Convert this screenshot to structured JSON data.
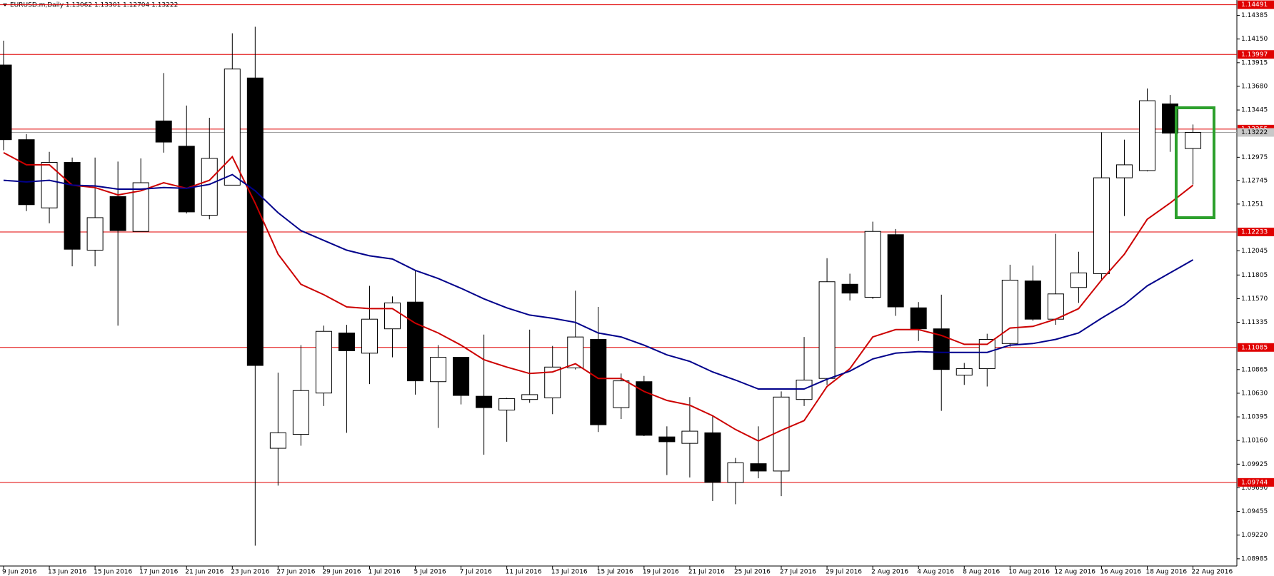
{
  "chart_data": {
    "type": "candlestick",
    "title": "EURUSD.m,Daily  1.13062 1.13301 1.12704 1.13222",
    "categories": [
      "9 Jun 2016",
      null,
      "13 Jun 2016",
      null,
      "15 Jun 2016",
      null,
      "17 Jun 2016",
      null,
      "21 Jun 2016",
      null,
      "23 Jun 2016",
      null,
      "27 Jun 2016",
      null,
      "29 Jun 2016",
      null,
      "1 Jul 2016",
      null,
      "5 Jul 2016",
      null,
      "7 Jul 2016",
      null,
      "11 Jul 2016",
      null,
      "13 Jul 2016",
      null,
      "15 Jul 2016",
      null,
      "19 Jul 2016",
      null,
      "21 Jul 2016",
      null,
      "25 Jul 2016",
      null,
      "27 Jul 2016",
      null,
      "29 Jul 2016",
      null,
      "2 Aug 2016",
      null,
      "4 Aug 2016",
      null,
      "8 Aug 2016",
      null,
      "10 Aug 2016",
      null,
      "12 Aug 2016",
      null,
      "16 Aug 2016",
      null,
      "18 Aug 2016",
      null,
      "22 Aug 2016"
    ],
    "open": [
      1.13892,
      1.1315,
      1.12472,
      1.12924,
      1.12052,
      1.12585,
      1.12238,
      1.13336,
      1.13085,
      1.12399,
      1.12698,
      1.13763,
      1.10083,
      1.10221,
      1.10632,
      1.11229,
      1.11028,
      1.1127,
      1.11536,
      1.10745,
      1.10987,
      1.106,
      1.10463,
      1.10568,
      1.10584,
      1.10882,
      1.11165,
      1.10487,
      1.10745,
      1.10196,
      1.10132,
      1.10237,
      1.09744,
      1.0993,
      1.09857,
      1.10568,
      1.10777,
      1.11713,
      1.11584,
      1.12206,
      1.11479,
      1.1127,
      1.1081,
      1.10874,
      1.11124,
      1.11746,
      1.11366,
      1.11681,
      1.11818,
      1.12771,
      1.12843,
      1.13505,
      1.13062
    ],
    "high": [
      1.14134,
      1.13206,
      1.13029,
      1.12972,
      1.12972,
      1.12932,
      1.12964,
      1.13812,
      1.13489,
      1.13368,
      1.14207,
      1.14272,
      1.10834,
      1.11108,
      1.11302,
      1.1131,
      1.11697,
      1.11592,
      1.11851,
      1.11108,
      1.10987,
      1.11213,
      1.10584,
      1.11262,
      1.111,
      1.11649,
      1.11488,
      1.10826,
      1.10802,
      1.10301,
      1.10592,
      1.10406,
      1.09987,
      1.10301,
      1.10648,
      1.11189,
      1.11972,
      1.11818,
      1.12335,
      1.12262,
      1.11536,
      1.11609,
      1.10931,
      1.11221,
      1.11907,
      1.11899,
      1.12214,
      1.12036,
      1.13223,
      1.1315,
      1.13658,
      1.13594,
      1.13301
    ],
    "low": [
      1.13045,
      1.1244,
      1.12319,
      1.11891,
      1.11891,
      1.11302,
      1.12238,
      1.13021,
      1.12416,
      1.12359,
      1.12698,
      1.09115,
      1.09712,
      1.10108,
      1.10503,
      1.10237,
      1.10721,
      1.10987,
      1.10616,
      1.10285,
      1.10519,
      1.10019,
      1.10148,
      1.10535,
      1.10422,
      1.10866,
      1.10245,
      1.10374,
      1.10204,
      1.09817,
      1.09793,
      1.09559,
      1.09527,
      1.09785,
      1.09607,
      1.10503,
      1.10713,
      1.11552,
      1.11568,
      1.11399,
      1.11149,
      1.10455,
      1.10713,
      1.10697,
      1.11092,
      1.1135,
      1.1131,
      1.11528,
      1.11754,
      1.12391,
      1.12835,
      1.13029,
      1.12704
    ],
    "close": [
      1.1315,
      1.12504,
      1.12924,
      1.12061,
      1.12375,
      1.12246,
      1.12722,
      1.13126,
      1.12432,
      1.12964,
      1.13852,
      1.10906,
      1.10237,
      1.10656,
      1.11245,
      1.11052,
      1.11366,
      1.11528,
      1.10753,
      1.10987,
      1.10608,
      1.10487,
      1.10576,
      1.10616,
      1.1089,
      1.11189,
      1.10317,
      1.10753,
      1.10212,
      1.10148,
      1.10253,
      1.09744,
      1.09938,
      1.09857,
      1.10592,
      1.10761,
      1.11738,
      1.11625,
      1.12238,
      1.11488,
      1.1127,
      1.10866,
      1.10874,
      1.11165,
      1.11754,
      1.11366,
      1.11617,
      1.11826,
      1.12771,
      1.129,
      1.13537,
      1.13215,
      1.13222
    ],
    "up_color": "#ffffff",
    "down_color": "#000000",
    "lines": [
      {
        "color": "#cc0000",
        "values": [
          1.13021,
          1.129,
          1.129,
          1.12698,
          1.12674,
          1.12601,
          1.12642,
          1.12722,
          1.12666,
          1.12746,
          1.1298,
          1.1252,
          1.12012,
          1.11713,
          1.11609,
          1.11488,
          1.11471,
          1.11471,
          1.11326,
          1.11229,
          1.11108,
          1.10963,
          1.1089,
          1.10826,
          1.10842,
          1.10923,
          1.10777,
          1.10777,
          1.10648,
          1.10559,
          1.10511,
          1.10406,
          1.10269,
          1.10156,
          1.10261,
          1.10358,
          1.10697,
          1.10874,
          1.11189,
          1.11262,
          1.11262,
          1.11205,
          1.11116,
          1.11116,
          1.11278,
          1.11294,
          1.11366,
          1.11471,
          1.11754,
          1.12012,
          1.12359,
          1.1252,
          1.12698
        ]
      },
      {
        "color": "#00008b",
        "values": [
          1.12746,
          1.1273,
          1.12746,
          1.12698,
          1.1269,
          1.12658,
          1.12658,
          1.12674,
          1.12666,
          1.12706,
          1.12803,
          1.12642,
          1.12424,
          1.12246,
          1.12149,
          1.12052,
          1.11996,
          1.11964,
          1.11851,
          1.1177,
          1.11673,
          1.11568,
          1.11479,
          1.11407,
          1.11375,
          1.11334,
          1.11229,
          1.11189,
          1.11108,
          1.11011,
          1.10947,
          1.10842,
          1.10761,
          1.10672,
          1.10672,
          1.10672,
          1.10769,
          1.1085,
          1.10971,
          1.11028,
          1.11044,
          1.11036,
          1.11036,
          1.11036,
          1.11108,
          1.11124,
          1.11165,
          1.11229,
          1.11375,
          1.11512,
          1.11697,
          1.11826,
          1.11956
        ]
      }
    ],
    "levels": [
      1.14491,
      1.13997,
      1.13255,
      1.12233,
      1.11085,
      1.09744
    ],
    "level_color": "#e00000",
    "last_price": 1.13222,
    "ylim": [
      1.08913,
      1.14538
    ],
    "yticks": [
      1.14385,
      {
        "value": 1.1415,
        "label": "1.14150"
      },
      1.13915,
      {
        "value": 1.1368,
        "label": "1.13680"
      },
      1.13445,
      1.12975,
      1.12745,
      1.1251,
      1.12045,
      1.11805,
      {
        "value": 1.1157,
        "label": "1.11570"
      },
      1.11335,
      1.10865,
      {
        "value": 1.1063,
        "label": "1.10630"
      },
      1.10395,
      {
        "value": 1.1016,
        "label": "1.10160"
      },
      1.09925,
      {
        "value": 1.0969,
        "label": "1.09690"
      },
      1.09455,
      {
        "value": 1.0922,
        "label": "1.09220"
      },
      1.08985
    ]
  }
}
